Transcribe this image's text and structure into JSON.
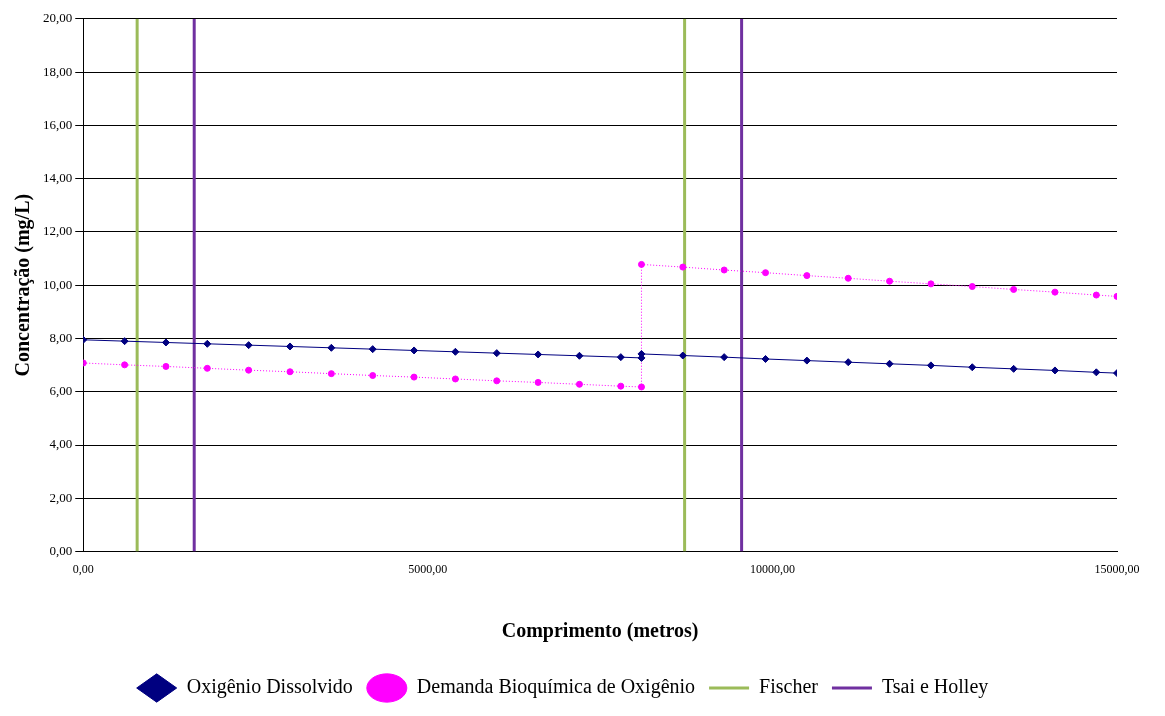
{
  "chart_data": {
    "type": "line",
    "xlabel": "Comprimento (metros)",
    "ylabel": "Concentração (mg/L)",
    "xlim": [
      0,
      15000
    ],
    "xticks": [
      {
        "value": 0,
        "label": "0,00"
      },
      {
        "value": 5000,
        "label": "5000,00"
      },
      {
        "value": 10000,
        "label": "10000,00"
      },
      {
        "value": 15000,
        "label": "15000,00"
      }
    ],
    "ylim": [
      0,
      20
    ],
    "yticks": [
      {
        "value": 0,
        "label": "0,00"
      },
      {
        "value": 2,
        "label": "2,00"
      },
      {
        "value": 4,
        "label": "4,00"
      },
      {
        "value": 6,
        "label": "6,00"
      },
      {
        "value": 8,
        "label": "8,00"
      },
      {
        "value": 10,
        "label": "10,00"
      },
      {
        "value": 12,
        "label": "12,00"
      },
      {
        "value": 14,
        "label": "14,00"
      },
      {
        "value": 16,
        "label": "16,00"
      },
      {
        "value": 18,
        "label": "18,00"
      },
      {
        "value": 20,
        "label": "20,00"
      }
    ],
    "grid": "y",
    "legend": "bottom",
    "series": [
      {
        "name": "Oxigênio Dissolvido",
        "color": "#000080",
        "marker": "diamond",
        "line_style": "solid",
        "x": [
          0,
          600,
          1200,
          1800,
          2400,
          3000,
          3600,
          4200,
          4800,
          5400,
          6000,
          6600,
          7200,
          7800,
          8100,
          8100,
          8700,
          9300,
          9900,
          10500,
          11100,
          11700,
          12300,
          12900,
          13500,
          14100,
          14700,
          15000
        ],
        "values": [
          7.95,
          7.9,
          7.85,
          7.8,
          7.75,
          7.7,
          7.65,
          7.6,
          7.55,
          7.5,
          7.45,
          7.4,
          7.35,
          7.3,
          7.27,
          7.42,
          7.36,
          7.3,
          7.23,
          7.17,
          7.11,
          7.05,
          6.99,
          6.92,
          6.86,
          6.8,
          6.73,
          6.7
        ]
      },
      {
        "name": "Demanda Bioquímica de Oxigênio",
        "color": "#ff00ff",
        "marker": "circle",
        "line_style": "dotted",
        "x": [
          0,
          600,
          1200,
          1800,
          2400,
          3000,
          3600,
          4200,
          4800,
          5400,
          6000,
          6600,
          7200,
          7800,
          8100,
          8100,
          8700,
          9300,
          9900,
          10500,
          11100,
          11700,
          12300,
          12900,
          13500,
          14100,
          14700,
          15000
        ],
        "values": [
          7.08,
          7.01,
          6.95,
          6.88,
          6.81,
          6.75,
          6.68,
          6.61,
          6.55,
          6.48,
          6.41,
          6.35,
          6.28,
          6.21,
          6.18,
          10.78,
          10.68,
          10.57,
          10.47,
          10.36,
          10.26,
          10.15,
          10.05,
          9.95,
          9.84,
          9.74,
          9.63,
          9.58
        ]
      },
      {
        "name": "Fischer",
        "color": "#9bbb59",
        "marker": "none",
        "line_style": "solid",
        "x": [
          782,
          782,
          null,
          8726,
          8726
        ],
        "values": [
          0,
          20,
          null,
          0,
          20
        ]
      },
      {
        "name": "Tsai e Holley",
        "color": "#7030a0",
        "marker": "none",
        "line_style": "solid",
        "x": [
          1610,
          1610,
          null,
          9553,
          9553
        ],
        "values": [
          0,
          20,
          null,
          0,
          20
        ]
      }
    ]
  }
}
